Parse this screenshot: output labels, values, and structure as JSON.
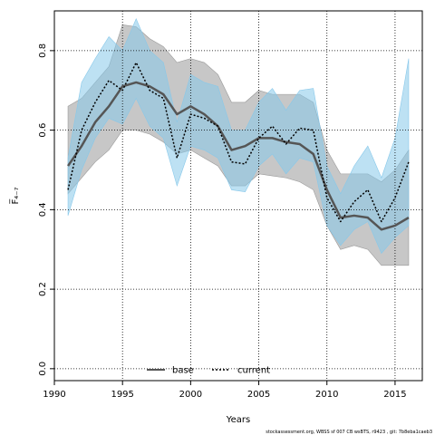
{
  "chart_data": {
    "type": "line",
    "xlabel": "Years",
    "ylabel": "F̅₄₋₇",
    "xlim": [
      1990,
      2017
    ],
    "ylim": [
      -0.03,
      0.9
    ],
    "xticks": [
      1990,
      1995,
      2000,
      2005,
      2010,
      2015
    ],
    "yticks": [
      0.0,
      0.2,
      0.4,
      0.6,
      0.8
    ],
    "ytick_labels": [
      "0.0",
      "0.2",
      "0.4",
      "0.6",
      "0.8"
    ],
    "grid": true,
    "legend_position": "bottom-center",
    "x": [
      1991,
      1992,
      1993,
      1994,
      1995,
      1996,
      1997,
      1998,
      1999,
      2000,
      2001,
      2002,
      2003,
      2004,
      2005,
      2006,
      2007,
      2008,
      2009,
      2010,
      2011,
      2012,
      2013,
      2014,
      2015,
      2016
    ],
    "series": [
      {
        "name": "base",
        "line_style": "solid",
        "color": "#555555",
        "band_color": "#999999",
        "values": [
          0.51,
          0.56,
          0.62,
          0.66,
          0.71,
          0.72,
          0.71,
          0.69,
          0.64,
          0.66,
          0.64,
          0.61,
          0.55,
          0.56,
          0.58,
          0.58,
          0.57,
          0.565,
          0.54,
          0.45,
          0.38,
          0.385,
          0.38,
          0.35,
          0.36,
          0.38
        ],
        "lower": [
          0.44,
          0.48,
          0.52,
          0.55,
          0.6,
          0.6,
          0.59,
          0.57,
          0.54,
          0.55,
          0.53,
          0.51,
          0.46,
          0.46,
          0.49,
          0.485,
          0.48,
          0.47,
          0.45,
          0.36,
          0.3,
          0.31,
          0.3,
          0.26,
          0.26,
          0.26
        ],
        "upper": [
          0.66,
          0.68,
          0.72,
          0.76,
          0.865,
          0.86,
          0.83,
          0.81,
          0.77,
          0.78,
          0.77,
          0.74,
          0.67,
          0.67,
          0.7,
          0.69,
          0.69,
          0.69,
          0.67,
          0.55,
          0.49,
          0.49,
          0.49,
          0.47,
          0.5,
          0.55
        ]
      },
      {
        "name": "current",
        "line_style": "dotted",
        "color": "#000000",
        "band_color": "#87c8ea",
        "values": [
          0.45,
          0.6,
          0.67,
          0.725,
          0.7,
          0.77,
          0.7,
          0.68,
          0.53,
          0.64,
          0.63,
          0.61,
          0.52,
          0.515,
          0.58,
          0.61,
          0.565,
          0.605,
          0.6,
          0.43,
          0.37,
          0.42,
          0.45,
          0.37,
          0.43,
          0.52
        ],
        "lower": [
          0.385,
          0.5,
          0.58,
          0.63,
          0.615,
          0.68,
          0.61,
          0.58,
          0.46,
          0.56,
          0.55,
          0.53,
          0.45,
          0.445,
          0.51,
          0.54,
          0.49,
          0.53,
          0.52,
          0.36,
          0.31,
          0.35,
          0.37,
          0.29,
          0.33,
          0.36
        ],
        "upper": [
          0.53,
          0.72,
          0.78,
          0.835,
          0.8,
          0.88,
          0.8,
          0.77,
          0.62,
          0.74,
          0.72,
          0.71,
          0.6,
          0.6,
          0.67,
          0.705,
          0.65,
          0.7,
          0.705,
          0.51,
          0.44,
          0.51,
          0.56,
          0.48,
          0.58,
          0.78
        ]
      }
    ]
  },
  "footnote": "stockassessment.org, WBSS sf 007 CB wsBTS, r9423 , git: 7b8eba1caeb3"
}
